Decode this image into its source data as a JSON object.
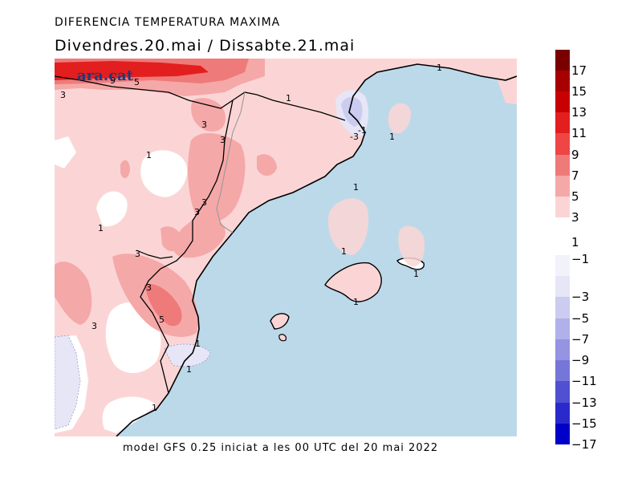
{
  "header": {
    "title": "DIFERENCIA TEMPERATURA MAXIMA",
    "subtitle": "Divendres.20.mai  /  Dissabte.21.mai"
  },
  "footer": "model GFS 0.25 iniciat a les 00 UTC del 20 mai 2022",
  "logo_text": "ara.cat",
  "map": {
    "colors": {
      "sea": "#bcd9ea",
      "land_base": "#fbd5d5",
      "warm3": "#f5a8a8",
      "warm5": "#ef7a7a",
      "warm9": "#e31e1e",
      "white": "#ffffff",
      "cool1": "#e6e6f7",
      "cool3": "#ccccf0"
    },
    "contour_labels": [
      {
        "id": "c3-nw",
        "text": "3"
      },
      {
        "id": "c9",
        "text": "9"
      },
      {
        "id": "c5-top",
        "text": "5"
      },
      {
        "id": "c3-pyr",
        "text": "3"
      },
      {
        "id": "c3-cat",
        "text": "3"
      },
      {
        "id": "c1-pyr",
        "text": "1"
      },
      {
        "id": "c1-cb",
        "text": "1"
      },
      {
        "id": "c1-ne",
        "text": "1"
      },
      {
        "id": "c-3",
        "text": "-3"
      },
      {
        "id": "c-1",
        "text": "-1"
      },
      {
        "id": "c1-lion",
        "text": "1"
      },
      {
        "id": "c1-sea",
        "text": "1"
      },
      {
        "id": "c3-ebro",
        "text": "3"
      },
      {
        "id": "c3-a",
        "text": "3"
      },
      {
        "id": "c1-w",
        "text": "1"
      },
      {
        "id": "c3-s",
        "text": "3"
      },
      {
        "id": "c3-val",
        "text": "3"
      },
      {
        "id": "c5-val",
        "text": "5"
      },
      {
        "id": "c3-sw",
        "text": "3"
      },
      {
        "id": "c1-maj",
        "text": "1"
      },
      {
        "id": "c1-mall",
        "text": "1"
      },
      {
        "id": "c1-men",
        "text": "1"
      },
      {
        "id": "c1-coast",
        "text": "1"
      },
      {
        "id": "c1-ala",
        "text": "1"
      },
      {
        "id": "c1-mur",
        "text": "1"
      }
    ]
  },
  "colorbar": {
    "ticks": [
      "17",
      "15",
      "13",
      "11",
      "9",
      "7",
      "5",
      "3",
      "1",
      "−1",
      "−3",
      "−5",
      "−7",
      "−9",
      "−11",
      "−13",
      "−15",
      "−17"
    ],
    "colors": [
      "#7a0000",
      "#a80000",
      "#c80000",
      "#e31e1e",
      "#ef4545",
      "#ef7a7a",
      "#f5a8a8",
      "#fbd5d5",
      "#ffffff",
      "#f2f2fb",
      "#e6e6f7",
      "#ccccf0",
      "#b0b0ea",
      "#9494e2",
      "#7676d8",
      "#5050d0",
      "#2a2acc",
      "#0000c8"
    ]
  }
}
